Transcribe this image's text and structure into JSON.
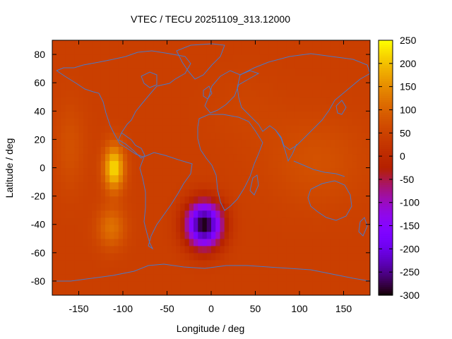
{
  "chart_data": {
    "type": "heatmap",
    "title": "VTEC / TECU 20251109_313.12000",
    "xlabel": "Longitude / deg",
    "ylabel": "Latitude / deg",
    "xlim": [
      -180,
      180
    ],
    "ylim": [
      -90,
      90
    ],
    "x_ticks": [
      -150,
      -100,
      -50,
      0,
      50,
      100,
      150
    ],
    "y_ticks": [
      -80,
      -60,
      -40,
      -20,
      0,
      20,
      40,
      60,
      80
    ],
    "colorbar": {
      "range": [
        -300,
        250
      ],
      "ticks": [
        250,
        200,
        150,
        100,
        50,
        0,
        -50,
        -100,
        -150,
        -200,
        -250,
        -300
      ],
      "palette": "black-purple-red-orange-yellow"
    },
    "background_value": 45,
    "features": [
      {
        "lon": -110,
        "lat": 0,
        "value": 225,
        "sigma_lon": 8,
        "sigma_lat": 11
      },
      {
        "lon": -113,
        "lat": -42,
        "value": 120,
        "sigma_lon": 11,
        "sigma_lat": 10
      },
      {
        "lon": -160,
        "lat": 15,
        "value": 75,
        "sigma_lon": 12,
        "sigma_lat": 22
      },
      {
        "lon": -8,
        "lat": -40,
        "value": -300,
        "sigma_lon": 14,
        "sigma_lat": 11
      },
      {
        "lon": 120,
        "lat": 5,
        "value": 75,
        "sigma_lon": 40,
        "sigma_lat": 22
      },
      {
        "lon": 40,
        "lat": 40,
        "value": 55,
        "sigma_lon": 30,
        "sigma_lat": 18
      }
    ],
    "overlay": "coastlines",
    "grid": false
  }
}
